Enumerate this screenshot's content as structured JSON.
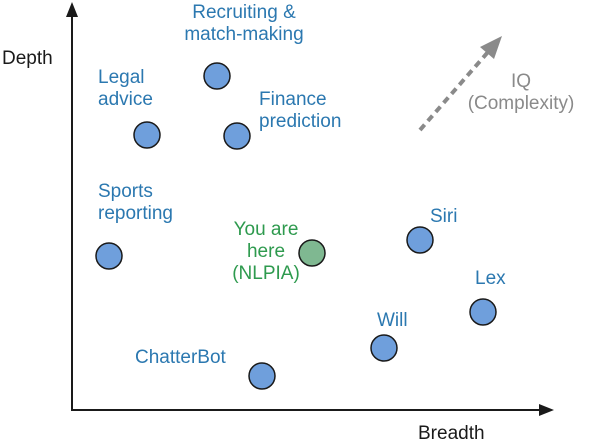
{
  "axes": {
    "x_label": "Breadth",
    "y_label": "Depth"
  },
  "iq": {
    "line1": "IQ",
    "line2": "(Complexity)"
  },
  "colors": {
    "node_blue": "#6f9fdc",
    "node_green": "#7fb891",
    "label_blue": "#2b78b0",
    "label_green": "#2e9a4e",
    "arrow_gray": "#8a8a8a"
  },
  "nodes": [
    {
      "id": "recruiting",
      "lines": [
        "Recruiting &",
        "match-making"
      ]
    },
    {
      "id": "legal",
      "lines": [
        "Legal",
        "advice"
      ]
    },
    {
      "id": "finance",
      "lines": [
        "Finance",
        "prediction"
      ]
    },
    {
      "id": "sports",
      "lines": [
        "Sports",
        "reporting"
      ]
    },
    {
      "id": "nlpia",
      "lines": [
        "You are",
        "here",
        "(NLPIA)"
      ]
    },
    {
      "id": "siri",
      "lines": [
        "Siri"
      ]
    },
    {
      "id": "lex",
      "lines": [
        "Lex"
      ]
    },
    {
      "id": "will",
      "lines": [
        "Will"
      ]
    },
    {
      "id": "chatterbot",
      "lines": [
        "ChatterBot"
      ]
    }
  ]
}
